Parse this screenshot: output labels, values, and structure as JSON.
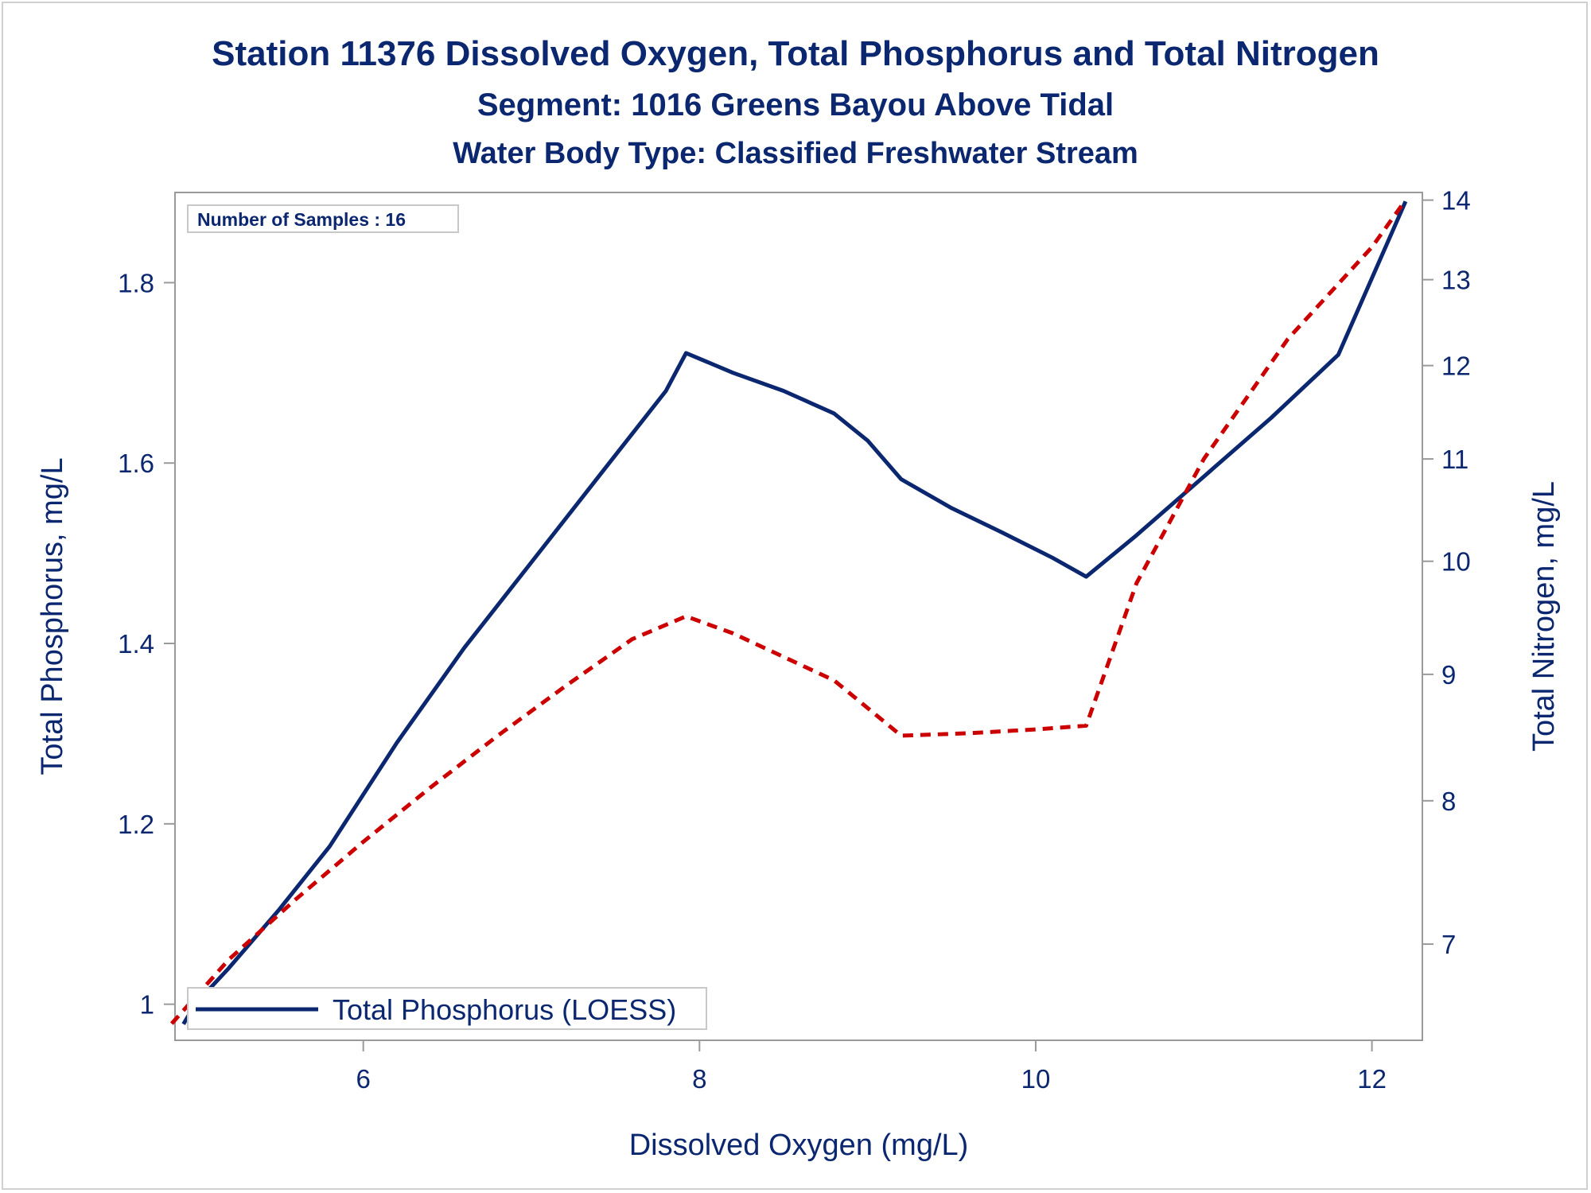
{
  "chart_data": {
    "type": "line",
    "title": "Station 11376  Dissolved Oxygen, Total Phosphorus and Total Nitrogen",
    "subtitle": "Segment: 1016  Greens Bayou Above Tidal",
    "subtitle2": "Water Body Type: Classified Freshwater Stream",
    "xlabel": "Dissolved Oxygen (mg/L)",
    "ylabel_left": "Total Phosphorus, mg/L",
    "ylabel_right": "Total Nitrogen, mg/L",
    "xlim": [
      4.88,
      12.3
    ],
    "ylim_left": [
      0.96,
      1.9
    ],
    "ylim_right": [
      6.4,
      14.1
    ],
    "right_axis_scale": "log",
    "x_ticks": [
      "6",
      "8",
      "10",
      "12"
    ],
    "y_left_ticks": [
      "1",
      "1.2",
      "1.4",
      "1.6",
      "1.8"
    ],
    "y_right_ticks": [
      "7",
      "8",
      "9",
      "10",
      "11",
      "12",
      "13",
      "14"
    ],
    "annotation": "Number of Samples : 16",
    "legend": {
      "placement": "bottom-left",
      "entries": [
        "Total Phosphorus (LOESS)"
      ]
    },
    "grid": false,
    "series": [
      {
        "name": "Total Phosphorus (LOESS)",
        "axis": "left",
        "style": "solid",
        "color": "#0b2770",
        "x": [
          4.93,
          5.0,
          5.2,
          5.5,
          5.8,
          6.2,
          6.6,
          7.0,
          7.4,
          7.8,
          7.92,
          8.2,
          8.5,
          8.8,
          9.0,
          9.2,
          9.5,
          9.8,
          10.1,
          10.3,
          10.6,
          11.0,
          11.4,
          11.8,
          12.2
        ],
        "y": [
          0.978,
          1.0,
          1.04,
          1.105,
          1.175,
          1.29,
          1.395,
          1.49,
          1.585,
          1.68,
          1.722,
          1.7,
          1.68,
          1.655,
          1.625,
          1.582,
          1.55,
          1.523,
          1.495,
          1.474,
          1.52,
          1.585,
          1.65,
          1.72,
          1.89
        ]
      },
      {
        "name": "",
        "axis": "right",
        "style": "dashed",
        "color": "#cc0000",
        "x": [
          4.86,
          5.2,
          5.6,
          6.0,
          6.4,
          6.8,
          7.2,
          7.6,
          7.92,
          8.2,
          8.8,
          9.2,
          9.6,
          10.0,
          10.3,
          10.6,
          11.0,
          11.5,
          12.0,
          12.2
        ],
        "y": [
          6.5,
          6.9,
          7.3,
          7.7,
          8.1,
          8.5,
          8.9,
          9.3,
          9.5,
          9.35,
          8.95,
          8.5,
          8.52,
          8.55,
          8.58,
          9.8,
          11.0,
          12.3,
          13.4,
          14.0
        ]
      }
    ]
  }
}
